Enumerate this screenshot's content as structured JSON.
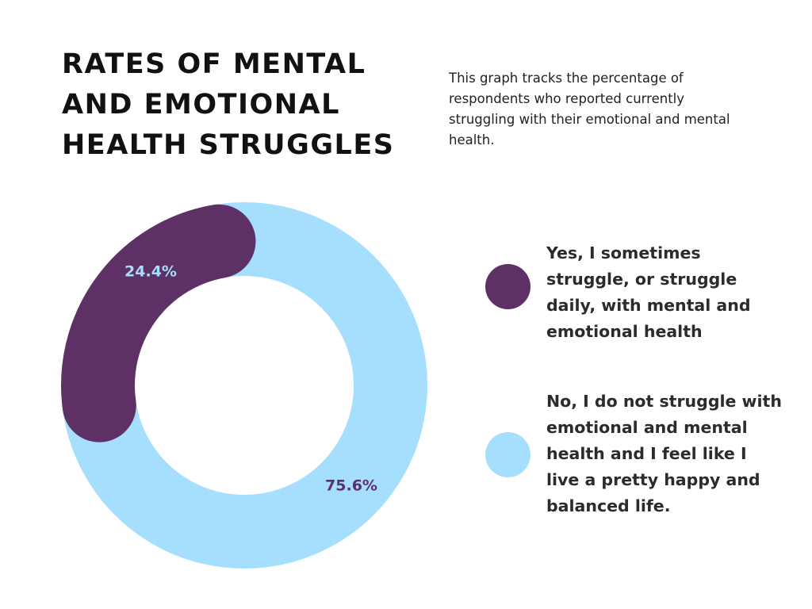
{
  "title": "RATES OF MENTAL AND EMOTIONAL HEALTH STRUGGLES",
  "subtitle": "This graph tracks the percentage of respondents who reported currently struggling with their emotional and mental health.",
  "chart_data": {
    "type": "pie",
    "variant": "donut",
    "title": "RATES OF MENTAL AND EMOTIONAL HEALTH STRUGGLES",
    "series": [
      {
        "name": "Yes, I sometimes struggle, or struggle daily, with mental and emotional health",
        "value": 24.4,
        "label": "24.4%",
        "color": "#5e3166",
        "label_color": "#a6dffd"
      },
      {
        "name": "No, I  do not struggle with emotional and mental health and I feel like I live a pretty happy and balanced life.",
        "value": 75.6,
        "label": "75.6%",
        "color": "#a6dffd",
        "label_color": "#5e3166"
      }
    ],
    "legend_position": "right",
    "rounded_ends": true
  }
}
